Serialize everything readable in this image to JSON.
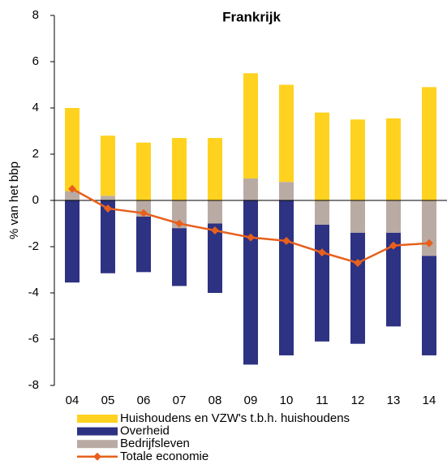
{
  "chart_data": {
    "type": "bar",
    "title": "Frankrijk",
    "y_label": "% van het bbp",
    "categories": [
      "04",
      "05",
      "06",
      "07",
      "08",
      "09",
      "10",
      "11",
      "12",
      "13",
      "14"
    ],
    "series": [
      {
        "name": "Huishoudens en VZW's t.b.h. huishoudens",
        "color": "#ffd21f",
        "values": [
          3.6,
          2.6,
          2.5,
          2.7,
          2.7,
          4.55,
          4.2,
          3.8,
          3.5,
          3.55,
          4.9
        ]
      },
      {
        "name": "Overheid",
        "color": "#2d3282",
        "values": [
          -3.55,
          -3.15,
          -2.4,
          -2.5,
          -3.0,
          -7.1,
          -6.7,
          -5.05,
          -4.8,
          -4.05,
          -4.3
        ]
      },
      {
        "name": "Bedrijfsleven",
        "color": "#b9aba4",
        "values": [
          0.4,
          0.2,
          -0.7,
          -1.2,
          -1.0,
          0.95,
          0.8,
          -1.05,
          -1.4,
          -1.4,
          -2.4
        ]
      },
      {
        "name": "Totale economie",
        "type": "line",
        "color": "#e8601c",
        "values": [
          0.5,
          -0.35,
          -0.55,
          -1.0,
          -1.3,
          -1.6,
          -1.75,
          -2.25,
          -2.7,
          -1.95,
          -1.85
        ]
      }
    ],
    "ylim": [
      -8,
      8
    ],
    "yticks": [
      -8,
      -6,
      -4,
      -2,
      0,
      2,
      4,
      6,
      8
    ],
    "stacked": true
  }
}
